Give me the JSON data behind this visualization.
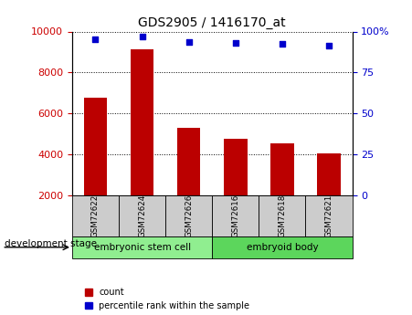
{
  "title": "GDS2905 / 1416170_at",
  "samples": [
    "GSM72622",
    "GSM72624",
    "GSM72626",
    "GSM72616",
    "GSM72618",
    "GSM72621"
  ],
  "counts": [
    6750,
    9150,
    5300,
    4750,
    4550,
    4050
  ],
  "percentiles": [
    95.5,
    97.0,
    93.5,
    93.0,
    92.5,
    91.5
  ],
  "groups": [
    {
      "label": "embryonic stem cell",
      "indices": [
        0,
        1,
        2
      ],
      "color": "#90ee90"
    },
    {
      "label": "embryoid body",
      "indices": [
        3,
        4,
        5
      ],
      "color": "#5cd65c"
    }
  ],
  "bar_color": "#bb0000",
  "dot_color": "#0000cc",
  "left_yticks": [
    2000,
    4000,
    6000,
    8000,
    10000
  ],
  "left_ylim": [
    2000,
    10000
  ],
  "right_yticks": [
    0,
    25,
    50,
    75,
    100
  ],
  "right_ylim": [
    0,
    100
  ],
  "tick_label_bg": "#cccccc",
  "left_tick_color": "#cc0000",
  "right_tick_color": "#0000cc",
  "legend_count_label": "count",
  "legend_pct_label": "percentile rank within the sample",
  "stage_label": "development stage"
}
